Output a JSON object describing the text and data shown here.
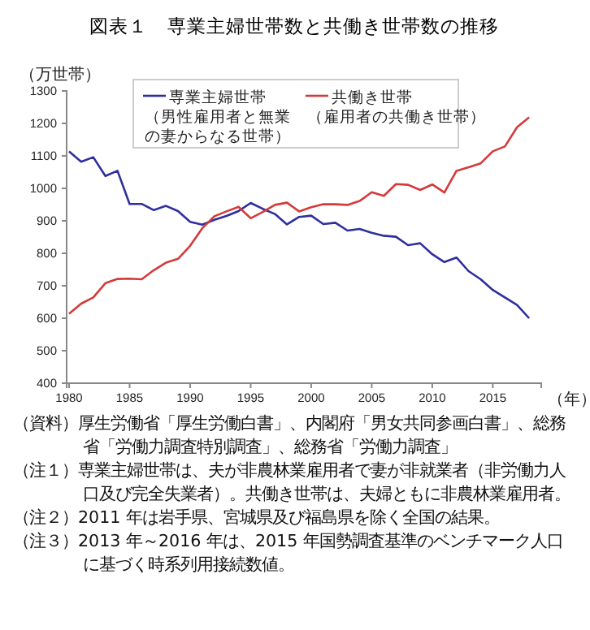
{
  "chart_data": {
    "type": "line",
    "title": "図表１　専業主婦世帯数と共働き世帯数の推移",
    "ylabel": "（万世帯）",
    "xlabel": "（年）",
    "x": [
      1980,
      1981,
      1982,
      1983,
      1984,
      1985,
      1986,
      1987,
      1988,
      1989,
      1990,
      1991,
      1992,
      1993,
      1994,
      1995,
      1996,
      1997,
      1998,
      1999,
      2000,
      2001,
      2002,
      2003,
      2004,
      2005,
      2006,
      2007,
      2008,
      2009,
      2010,
      2011,
      2012,
      2013,
      2014,
      2015,
      2016,
      2017,
      2018
    ],
    "series": [
      {
        "name": "専業主婦世帯（男性雇用者と無業の妻からなる世帯）",
        "color": "#2e2e9e",
        "values": [
          1114,
          1082,
          1096,
          1038,
          1054,
          952,
          952,
          933,
          946,
          930,
          897,
          888,
          903,
          915,
          930,
          955,
          937,
          921,
          889,
          912,
          916,
          890,
          894,
          870,
          875,
          863,
          854,
          851,
          825,
          831,
          797,
          773,
          787,
          745,
          720,
          687,
          664,
          641,
          600
        ]
      },
      {
        "name": "共働き世帯（雇用者の共働き世帯）",
        "color": "#d43a3a",
        "values": [
          614,
          645,
          664,
          708,
          721,
          722,
          720,
          748,
          771,
          783,
          823,
          877,
          914,
          929,
          943,
          908,
          927,
          949,
          956,
          929,
          942,
          951,
          951,
          949,
          961,
          988,
          977,
          1013,
          1011,
          995,
          1012,
          987,
          1054,
          1065,
          1077,
          1114,
          1129,
          1188,
          1219
        ]
      }
    ],
    "xlim": [
      1979.8,
      2019
    ],
    "xticks": [
      1980,
      1985,
      1990,
      1995,
      2000,
      2005,
      2010,
      2015
    ],
    "ylim": [
      400,
      1300
    ],
    "yticks": [
      400,
      500,
      600,
      700,
      800,
      900,
      1000,
      1100,
      1200,
      1300
    ],
    "grid": false,
    "legend": "top",
    "marker": "none",
    "line_style": "solid",
    "annotations": [
      "（資料）厚生労働省「厚生労働白書」、内閣府「男女共同参画白書」、総務省「労働力調査特別調査」、総務省「労働力調査」",
      "（注１）専業主婦世帯は、夫が非農林業雇用者で妻が非就業者（非労働力人口及び完全失業者）。共働き世帯は、夫婦ともに非農林業雇用者。",
      "（注２）2011 年は岩手県、宮城県及び福島県を除く全国の結果。",
      "（注３）2013 年～2016 年は、2015 年国勢調査基準のベンチマーク人口に基づく時系列用接続数値。"
    ]
  }
}
